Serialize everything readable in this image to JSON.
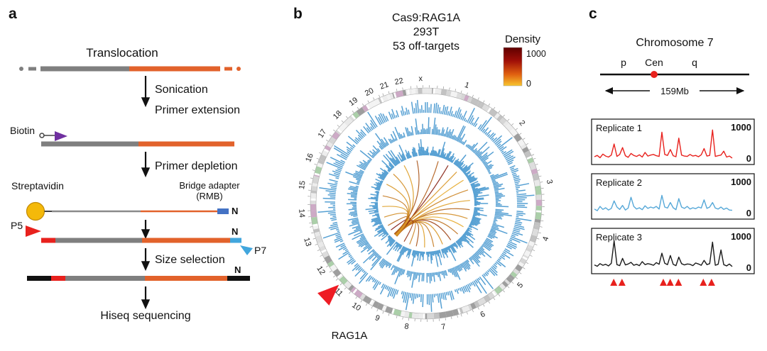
{
  "panel_a": {
    "label": "a",
    "title": "Translocation",
    "step_sonication": "Sonication",
    "step_primer_extension": "Primer extension",
    "step_primer_depletion": "Primer depletion",
    "step_size_selection": "Size selection",
    "step_sequencing": "Hiseq sequencing",
    "biotin_label": "Biotin",
    "streptavidin_label": "Streptavidin",
    "bridge_adapter_line1": "Bridge adapter",
    "bridge_adapter_line2": "(RMB)",
    "p5_label": "P5",
    "p7_label": "P7",
    "n_label": "N",
    "colors": {
      "bait_gray": "#7f7f7f",
      "prey_orange": "#e2622b",
      "biotin_purple": "#7030a0",
      "streptavidin_yellow": "#f4b90a",
      "adapter_blue": "#4472c4",
      "p5_red": "#e8211d",
      "p7_blue": "#41a6dd",
      "end_black": "#111111"
    }
  },
  "panel_b": {
    "label": "b",
    "title_line1": "Cas9:RAG1A",
    "title_line2": "293T",
    "title_line3": "53 off-targets",
    "legend_title": "Density",
    "legend_max": "1000",
    "legend_min": "0",
    "chromosomes": [
      "1",
      "2",
      "3",
      "4",
      "5",
      "6",
      "7",
      "8",
      "9",
      "10",
      "11",
      "12",
      "13",
      "14",
      "15",
      "16",
      "17",
      "18",
      "19",
      "20",
      "21",
      "22",
      "x"
    ],
    "target_label": "RAG1A",
    "colors": {
      "histogram_blue": "#56a0d3",
      "density_high": "#760808",
      "density_low": "#f8c52f",
      "arrow_red": "#ee1c24"
    }
  },
  "panel_c": {
    "label": "c",
    "title": "Chromosome 7",
    "arm_p": "p",
    "centromere": "Cen",
    "arm_q": "q",
    "size_label": "159Mb",
    "axis_max": "1000",
    "axis_min": "0",
    "offtarget_marks": [
      0.14,
      0.2,
      0.5,
      0.55,
      0.61,
      0.79,
      0.85
    ]
  },
  "chart_data": [
    {
      "type": "line",
      "title": "Chromosome 7 off-target density, three replicates",
      "ylabel": "Density",
      "ylim": [
        0,
        1000
      ],
      "series": [
        {
          "name": "Replicate 1",
          "color": "#e8211d",
          "values": [
            130,
            170,
            100,
            210,
            150,
            120,
            180,
            520,
            140,
            200,
            410,
            160,
            110,
            230,
            170,
            140,
            190,
            120,
            260,
            150,
            180,
            200,
            160,
            140,
            880,
            200,
            170,
            350,
            160,
            130,
            700,
            180,
            150,
            140,
            200,
            150,
            170,
            130,
            190,
            380,
            150,
            170,
            950,
            140,
            160,
            180,
            300,
            120,
            150,
            90
          ]
        },
        {
          "name": "Replicate 2",
          "color": "#56a8d8",
          "values": [
            200,
            150,
            280,
            190,
            240,
            170,
            220,
            450,
            260,
            190,
            310,
            170,
            230,
            560,
            280,
            200,
            240,
            180,
            300,
            220,
            260,
            230,
            280,
            200,
            620,
            260,
            230,
            400,
            240,
            180,
            520,
            260,
            220,
            280,
            200,
            240,
            210,
            260,
            230,
            480,
            220,
            260,
            400,
            230,
            200,
            260,
            190,
            230,
            170,
            160
          ]
        },
        {
          "name": "Replicate 3",
          "color": "#1a1a1a",
          "values": [
            160,
            120,
            200,
            150,
            180,
            130,
            210,
            900,
            170,
            140,
            360,
            160,
            190,
            240,
            150,
            180,
            140,
            260,
            170,
            200,
            180,
            150,
            230,
            180,
            520,
            210,
            170,
            450,
            180,
            140,
            400,
            200,
            160,
            190,
            180,
            140,
            220,
            190,
            150,
            300,
            170,
            200,
            860,
            150,
            180,
            620,
            170,
            130,
            190,
            110
          ]
        }
      ]
    },
    {
      "type": "circos",
      "title": "Cas9:RAG1A 293T 53 off-targets",
      "cell_line": "293T",
      "n_offtargets": 53,
      "hub_label": "RAG1A",
      "hub_chromosome": "11",
      "rings": 3,
      "density_scale": [
        0,
        1000
      ],
      "chromosomes": [
        "1",
        "2",
        "3",
        "4",
        "5",
        "6",
        "7",
        "8",
        "9",
        "10",
        "11",
        "12",
        "13",
        "14",
        "15",
        "16",
        "17",
        "18",
        "19",
        "20",
        "21",
        "22",
        "x"
      ]
    }
  ]
}
